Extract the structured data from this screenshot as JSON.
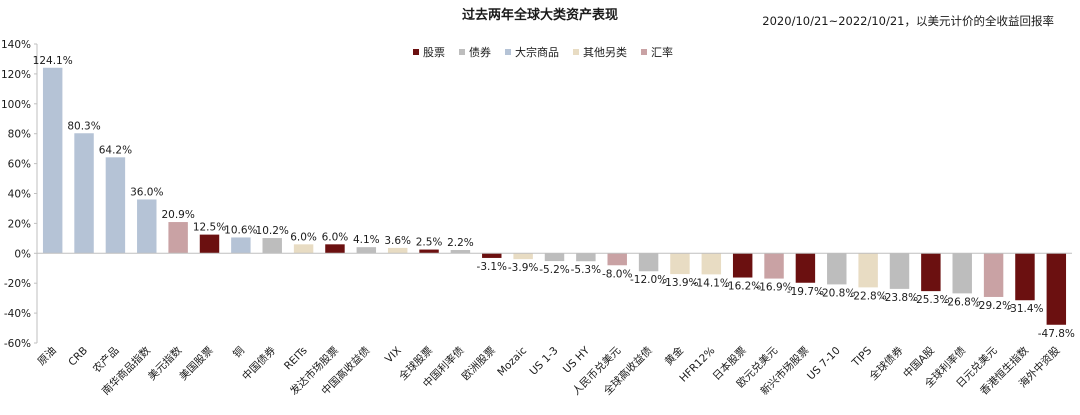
{
  "chart_data": {
    "type": "bar",
    "title": "过去两年全球大类资产表现",
    "subtitle": "2020/10/21~2022/10/21，以美元计价的全收益回报率",
    "ylim": [
      -60,
      140
    ],
    "yticks": [
      "140%",
      "120%",
      "100%",
      "80%",
      "60%",
      "40%",
      "20%",
      "0%",
      "-20%",
      "-40%",
      "-60%"
    ],
    "ytick_values": [
      140,
      120,
      100,
      80,
      60,
      40,
      20,
      0,
      -20,
      -40,
      -60
    ],
    "legend": [
      {
        "name": "股票",
        "color": "#6b1010"
      },
      {
        "name": "债券",
        "color": "#bdbdbd"
      },
      {
        "name": "大宗商品",
        "color": "#b5c3d6"
      },
      {
        "name": "其他另类",
        "color": "#e8dcc3"
      },
      {
        "name": "汇率",
        "color": "#c9a2a4"
      }
    ],
    "categories": [
      "原油",
      "CRB",
      "农产品",
      "南华商品指数",
      "美元指数",
      "美国股票",
      "铜",
      "中国债券",
      "REITs",
      "发达市场股票",
      "中国高收益债",
      "VIX",
      "全球股票",
      "中国利率债",
      "欧洲股票",
      "Mozaic",
      "US 1-3",
      "US HY",
      "人民币兑美元",
      "全球高收益债",
      "黄金",
      "HFR12%",
      "日本股票",
      "欧元兑美元",
      "新兴市场股票",
      "US 7-10",
      "TIPS",
      "全球债券",
      "中国A股",
      "全球利率债",
      "日元兑美元",
      "香港恒生指数",
      "海外中资股"
    ],
    "values": [
      124.1,
      80.3,
      64.2,
      36.0,
      20.9,
      12.5,
      10.6,
      10.2,
      6.0,
      6.0,
      4.1,
      3.6,
      2.5,
      2.2,
      -3.1,
      -3.9,
      -5.2,
      -5.3,
      -8.0,
      -12.0,
      -13.9,
      -14.1,
      -16.2,
      -16.9,
      -19.7,
      -20.8,
      -22.8,
      -23.8,
      -25.3,
      -26.8,
      -29.2,
      -31.4,
      -47.8
    ],
    "labels": [
      "124.1%",
      "80.3%",
      "64.2%",
      "36.0%",
      "20.9%",
      "12.5%",
      "10.6%",
      "10.2%",
      "6.0%",
      "6.0%",
      "4.1%",
      "3.6%",
      "2.5%",
      "2.2%",
      "-3.1%",
      "-3.9%",
      "-5.2%",
      "-5.3%",
      "-8.0%",
      "-12.0%",
      "-13.9%",
      "-14.1%",
      "-16.2%",
      "-16.9%",
      "-19.7%",
      "-20.8%",
      "-22.8%",
      "-23.8%",
      "-25.3%",
      "-26.8%",
      "-29.2%",
      "-31.4%",
      "-47.8%"
    ],
    "classes": [
      "大宗商品",
      "大宗商品",
      "大宗商品",
      "大宗商品",
      "汇率",
      "股票",
      "大宗商品",
      "债券",
      "其他另类",
      "股票",
      "债券",
      "其他另类",
      "股票",
      "债券",
      "股票",
      "其他另类",
      "债券",
      "债券",
      "汇率",
      "债券",
      "其他另类",
      "其他另类",
      "股票",
      "汇率",
      "股票",
      "债券",
      "其他另类",
      "债券",
      "股票",
      "债券",
      "汇率",
      "股票",
      "股票"
    ],
    "grid": false,
    "legend_position": "top-center"
  }
}
